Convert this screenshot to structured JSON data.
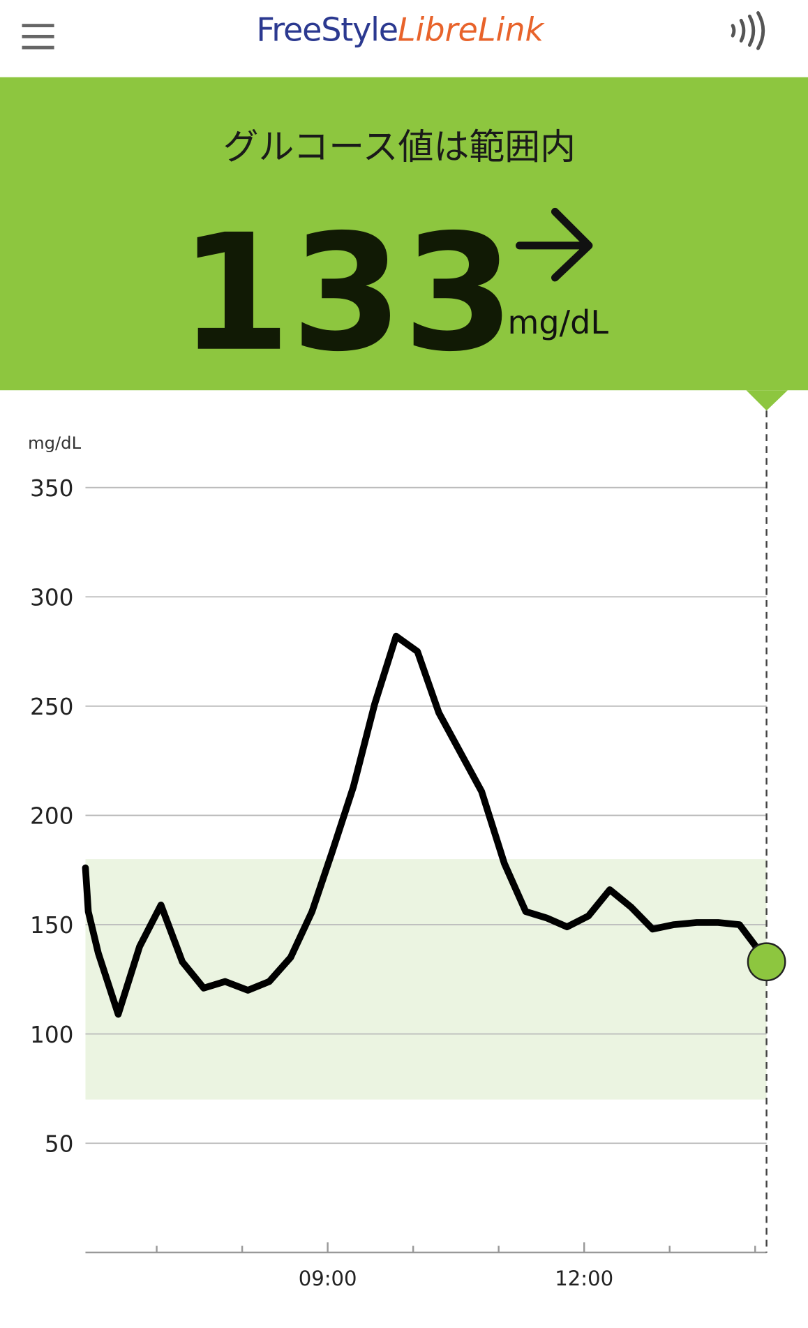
{
  "header": {
    "brand": "FreeStyle",
    "product": "LibreLink"
  },
  "status": {
    "message": "グルコース値は範囲内",
    "value": 133,
    "unit": "mg/dL"
  },
  "chart_data": {
    "type": "line",
    "y_label": "mg/dL",
    "x": [
      370,
      372,
      379,
      393,
      408,
      423,
      438,
      453,
      468,
      484,
      499,
      514,
      529,
      543,
      558,
      573,
      588,
      603,
      618,
      633,
      648,
      664,
      679,
      694,
      708,
      723,
      738,
      753,
      768,
      783,
      799,
      814,
      829,
      844,
      848
    ],
    "series": [
      {
        "name": "glucose",
        "color": "#000000",
        "values": [
          176,
          156,
          137,
          109,
          140,
          159,
          133,
          121,
          124,
          120,
          124,
          135,
          156,
          183,
          213,
          251,
          282,
          275,
          247,
          229,
          211,
          178,
          156,
          153,
          149,
          154,
          166,
          158,
          148,
          150,
          151,
          151,
          150,
          137,
          133
        ]
      }
    ],
    "current_color": "#8dc63f",
    "target_range": [
      70,
      180
    ],
    "target_color": "#ebf4e1",
    "xlim": [
      370,
      848
    ],
    "xticks": [
      {
        "value": 540,
        "label": "09:00"
      },
      {
        "value": 720,
        "label": "12:00"
      }
    ],
    "xminorticks": [
      420,
      480,
      600,
      660,
      780,
      840
    ],
    "ylim": [
      0,
      350
    ],
    "yticks": [
      50,
      100,
      150,
      200,
      250,
      300,
      350
    ],
    "grid": true
  }
}
